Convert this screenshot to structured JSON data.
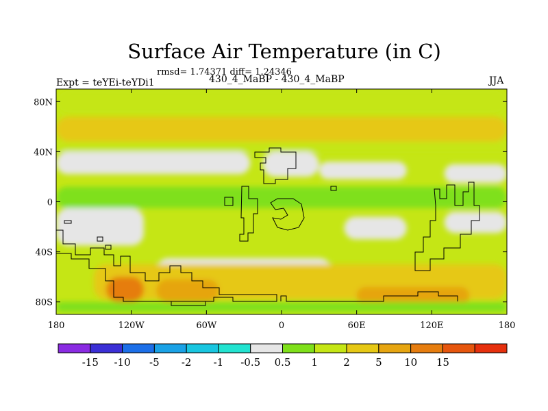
{
  "chart_data": {
    "type": "heatmap",
    "title": "Surface Air Temperature (in C)",
    "subtitle": "rmsd= 1.74371 diff= 1.24346",
    "left_label": "Expt = teYEi-teYDi1",
    "center_label": "430_4_MaBP - 430_4_MaBP",
    "right_label": "JJA",
    "x_ticks": [
      {
        "value": -180,
        "label": "180"
      },
      {
        "value": -120,
        "label": "120W"
      },
      {
        "value": -60,
        "label": "60W"
      },
      {
        "value": 0,
        "label": "0"
      },
      {
        "value": 60,
        "label": "60E"
      },
      {
        "value": 120,
        "label": "120E"
      },
      {
        "value": 180,
        "label": "180"
      }
    ],
    "y_ticks": [
      {
        "value": 80,
        "label": "80N"
      },
      {
        "value": 40,
        "label": "40N"
      },
      {
        "value": 0,
        "label": "0"
      },
      {
        "value": -40,
        "label": "40S"
      },
      {
        "value": -80,
        "label": "80S"
      }
    ],
    "xlim": [
      -180,
      180
    ],
    "ylim": [
      -90,
      90
    ],
    "colorbar": {
      "colors": [
        "#8a2be2",
        "#3b2fd6",
        "#1c6fe8",
        "#1aa2e6",
        "#19c6e0",
        "#22e3d0",
        "#e6e6e6",
        "#7fe01a",
        "#c5e615",
        "#e6c815",
        "#e6a511",
        "#e67d0f",
        "#e6560e",
        "#e6300d"
      ],
      "labels": [
        "-15",
        "-10",
        "-5",
        "-2",
        "-1",
        "-0.5",
        "0.5",
        "1",
        "2",
        "5",
        "10",
        "15"
      ]
    },
    "regions": [
      {
        "lat": [
          70,
          90
        ],
        "lon": [
          -180,
          180
        ],
        "category": "1 to 2"
      },
      {
        "lat": [
          48,
          68
        ],
        "lon": [
          -180,
          180
        ],
        "category": "2 to 5"
      },
      {
        "lat": [
          40,
          48
        ],
        "lon": [
          -180,
          180
        ],
        "category": "1 to 2"
      },
      {
        "lat": [
          22,
          40
        ],
        "lon": [
          -180,
          -25
        ],
        "category": "-0.5 to 0.5"
      },
      {
        "lat": [
          20,
          40
        ],
        "lon": [
          -15,
          30
        ],
        "category": "-0.5 to 0.5"
      },
      {
        "lat": [
          18,
          32
        ],
        "lon": [
          30,
          100
        ],
        "category": "-0.5 to 0.5"
      },
      {
        "lat": [
          15,
          30
        ],
        "lon": [
          130,
          180
        ],
        "category": "-0.5 to 0.5"
      },
      {
        "lat": [
          -5,
          12
        ],
        "lon": [
          -180,
          180
        ],
        "category": "0.5 to 1"
      },
      {
        "lat": [
          -35,
          -5
        ],
        "lon": [
          -180,
          -110
        ],
        "category": "-0.5 to 0.5"
      },
      {
        "lat": [
          -30,
          -12
        ],
        "lon": [
          50,
          100
        ],
        "category": "-0.5 to 0.5"
      },
      {
        "lat": [
          -25,
          -8
        ],
        "lon": [
          130,
          180
        ],
        "category": "-0.5 to 0.5"
      },
      {
        "lat": [
          -65,
          -45
        ],
        "lon": [
          -100,
          40
        ],
        "category": "-0.5 to 0.5"
      },
      {
        "lat": [
          -78,
          -50
        ],
        "lon": [
          -150,
          180
        ],
        "category": "2 to 5"
      },
      {
        "lat": [
          -80,
          -60
        ],
        "lon": [
          -140,
          -110
        ],
        "category": "10 to 15"
      },
      {
        "lat": [
          -80,
          -62
        ],
        "lon": [
          -100,
          -50
        ],
        "category": "5 to 10"
      },
      {
        "lat": [
          -82,
          -68
        ],
        "lon": [
          60,
          150
        ],
        "category": "5 to 10"
      },
      {
        "lat": [
          -88,
          -80
        ],
        "lon": [
          -180,
          180
        ],
        "category": "0.5 to 1"
      }
    ]
  }
}
